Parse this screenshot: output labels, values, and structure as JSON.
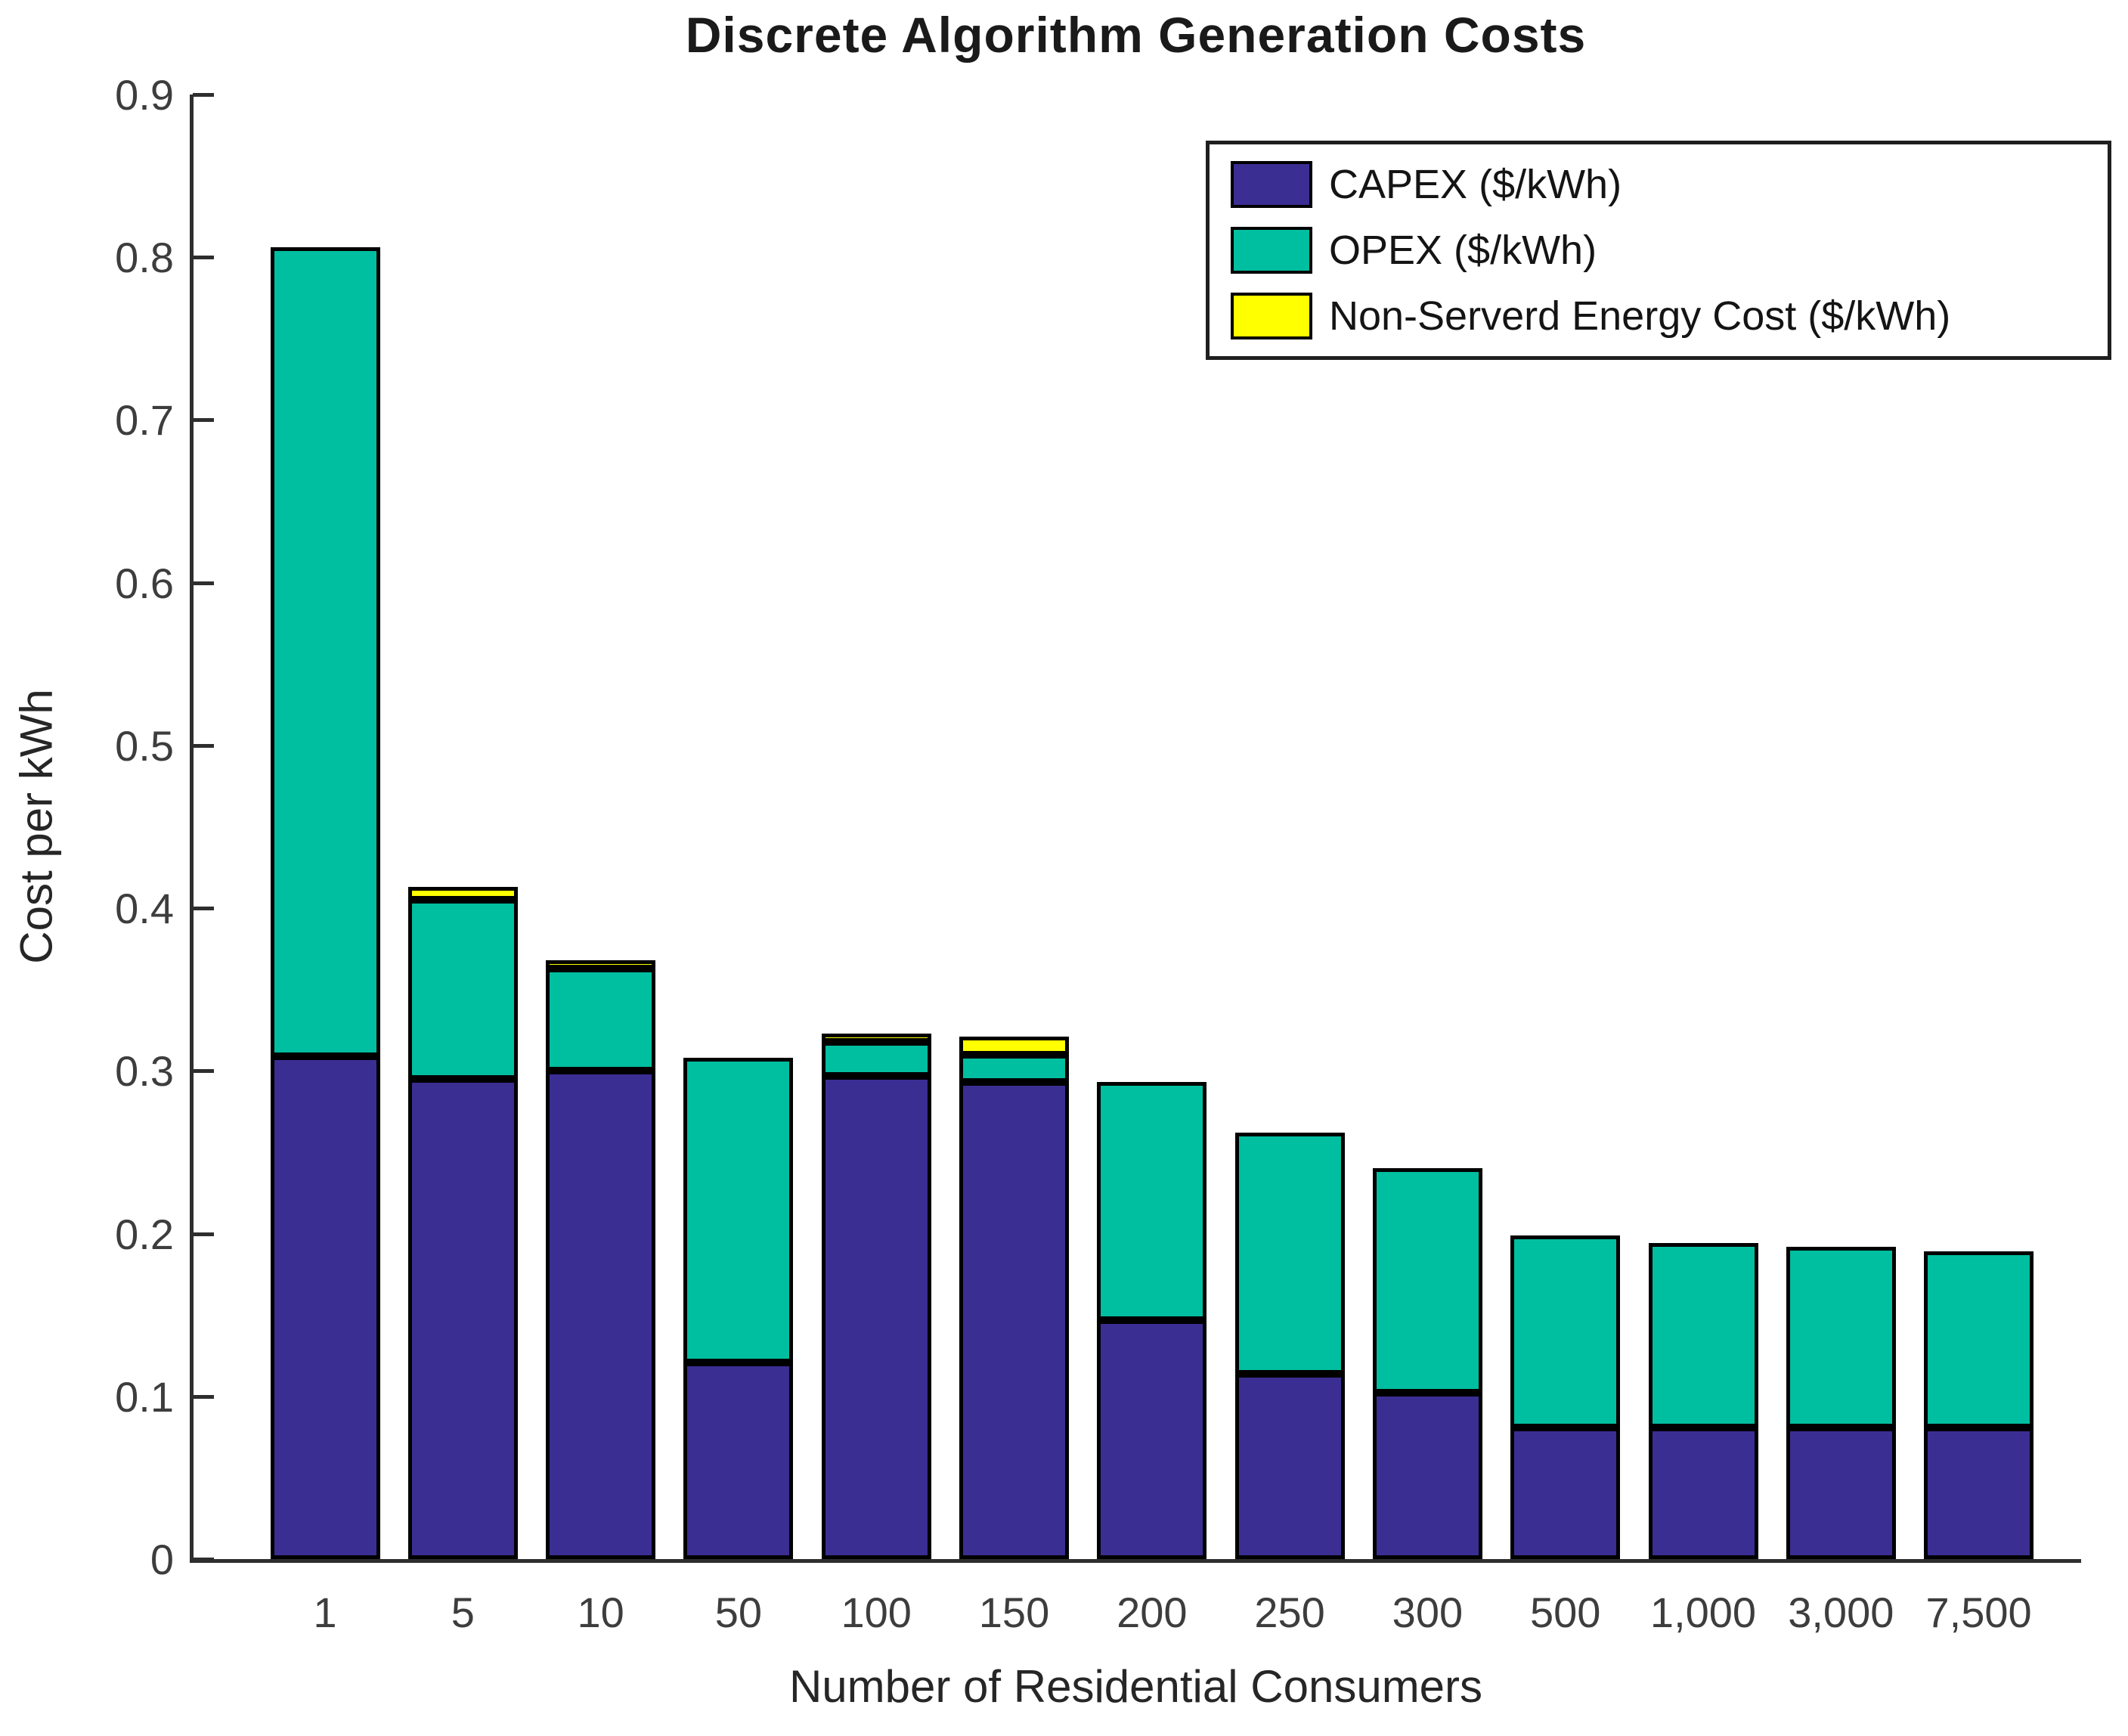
{
  "chart_data": {
    "type": "bar",
    "stacked": true,
    "title": "Discrete Algorithm Generation Costs",
    "xlabel": "Number of Residential Consumers",
    "ylabel": "Cost per kWh",
    "ylim": [
      0,
      0.9
    ],
    "grid": false,
    "legend_position": "upper-right",
    "bar_edge_color": "#000000",
    "y_ticks": [
      0,
      0.1,
      0.2,
      0.3,
      0.4,
      0.5,
      0.6,
      0.7,
      0.8,
      0.9
    ],
    "y_tick_labels": [
      "0",
      "0.1",
      "0.2",
      "0.3",
      "0.4",
      "0.5",
      "0.6",
      "0.7",
      "0.8",
      "0.9"
    ],
    "categories": [
      "1",
      "5",
      "10",
      "50",
      "100",
      "150",
      "200",
      "250",
      "300",
      "500",
      "1,000",
      "3,000",
      "7,500"
    ],
    "series": [
      {
        "name": "CAPEX ($/kWh)",
        "color": "#3A2E93",
        "values": [
          0.309,
          0.295,
          0.3,
          0.121,
          0.297,
          0.293,
          0.147,
          0.114,
          0.102,
          0.081,
          0.081,
          0.081,
          0.081
        ]
      },
      {
        "name": "OPEX ($/kWh)",
        "color": "#00BEA0",
        "values": [
          0.497,
          0.11,
          0.063,
          0.187,
          0.021,
          0.017,
          0.146,
          0.148,
          0.138,
          0.118,
          0.113,
          0.111,
          0.108
        ]
      },
      {
        "name": "Non-Serverd Energy Cost ($/kWh)",
        "color": "#FFFF00",
        "values": [
          0,
          0.008,
          0.005,
          0,
          0.005,
          0.011,
          0,
          0,
          0,
          0,
          0,
          0,
          0
        ]
      }
    ]
  }
}
